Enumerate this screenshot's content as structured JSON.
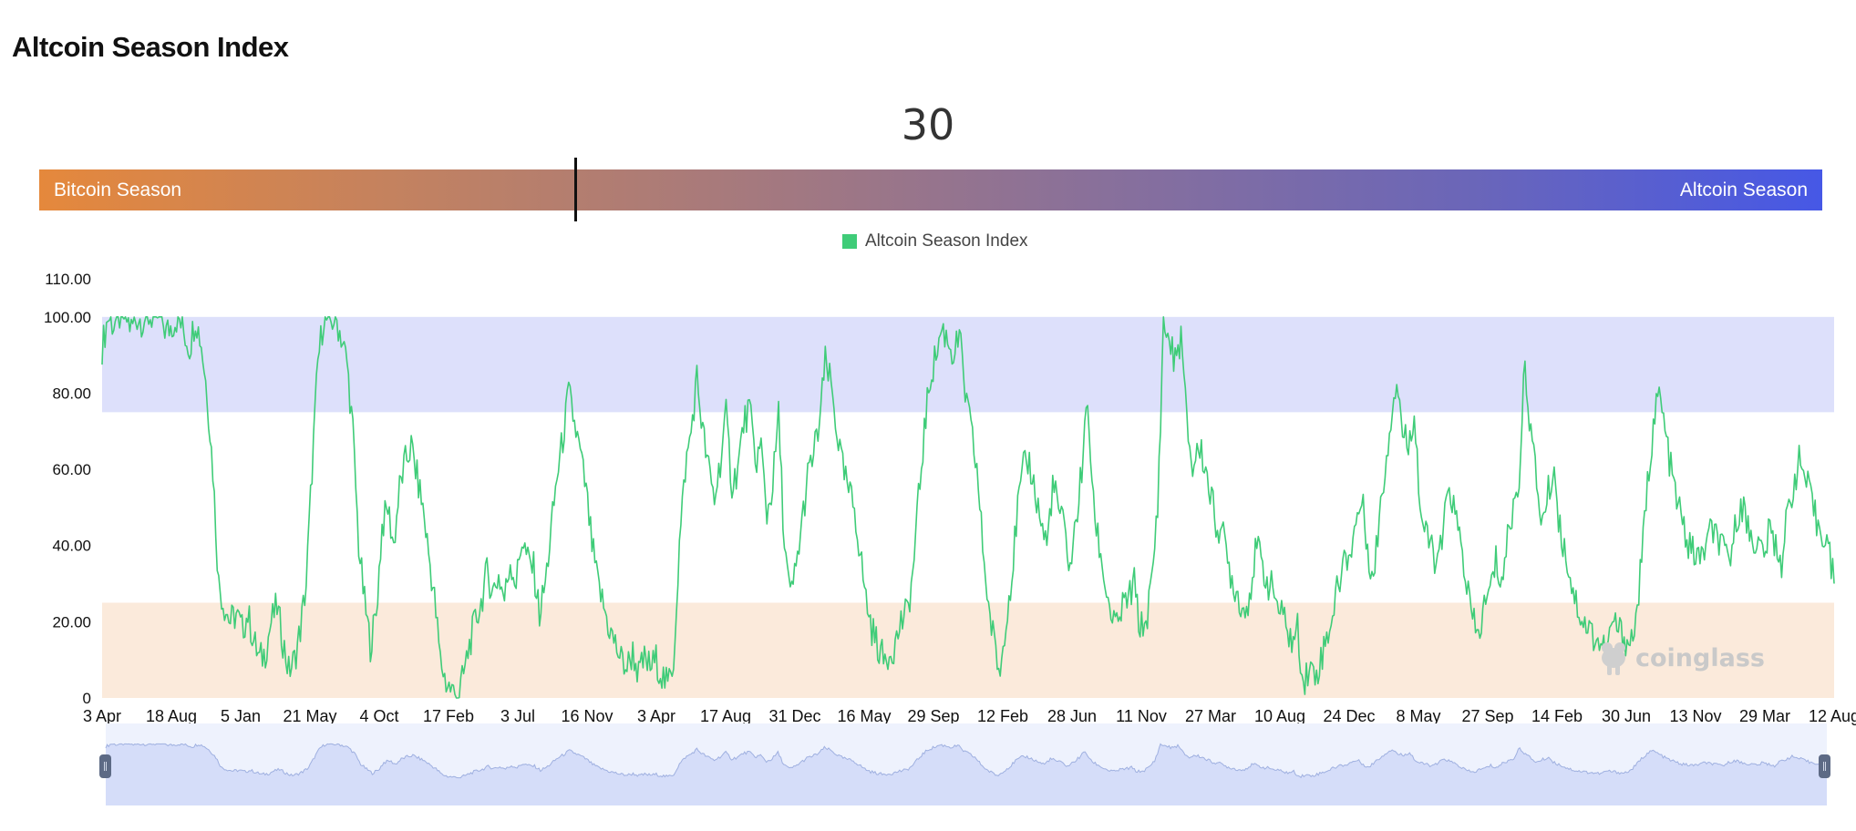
{
  "page": {
    "title": "Altcoin Season Index"
  },
  "gauge": {
    "value": "30",
    "left_label": "Bitcoin Season",
    "right_label": "Altcoin Season",
    "min": 0,
    "max": 100
  },
  "watermark": {
    "text": "coinglass",
    "icon": "coinglass-frog-logo-icon"
  },
  "colors": {
    "line": "#3fcc78",
    "altcoin_zone": "#dde0fb",
    "bitcoin_zone": "#fbeadb",
    "slider_bg": "#eef2fd",
    "slider_fill": "#d5ddf9",
    "slider_line": "#9fb0e0"
  },
  "chart_data": {
    "type": "line",
    "legend": {
      "label": "Altcoin Season Index",
      "placement": "top-center",
      "color": "#3fcc78"
    },
    "ylim": [
      0,
      110
    ],
    "y_ticks": [
      "0",
      "20.00",
      "40.00",
      "60.00",
      "80.00",
      "100.00",
      "110.00"
    ],
    "y_tick_values": [
      0,
      20,
      40,
      60,
      80,
      100,
      110
    ],
    "x_ticks": [
      "3 Apr",
      "18 Aug",
      "5 Jan",
      "21 May",
      "4 Oct",
      "17 Feb",
      "3 Jul",
      "16 Nov",
      "3 Apr",
      "17 Aug",
      "31 Dec",
      "16 May",
      "29 Sep",
      "12 Feb",
      "28 Jun",
      "11 Nov",
      "27 Mar",
      "10 Aug",
      "24 Dec",
      "8 May",
      "27 Sep",
      "14 Feb",
      "30 Jun",
      "13 Nov",
      "29 Mar",
      "12 Aug"
    ],
    "bands": [
      {
        "name": "Altcoin Season",
        "from": 75,
        "to": 100
      },
      {
        "name": "Bitcoin Season",
        "from": 0,
        "to": 25
      }
    ],
    "series": [
      {
        "values": [
          92,
          100,
          98,
          100,
          100,
          97,
          100,
          99,
          100,
          100,
          100,
          96,
          98,
          100,
          96,
          92,
          100,
          93,
          80,
          60,
          30,
          24,
          20,
          22,
          18,
          22,
          15,
          10,
          12,
          20,
          24,
          15,
          7,
          10,
          18,
          30,
          60,
          88,
          100,
          98,
          100,
          95,
          88,
          70,
          40,
          25,
          14,
          22,
          45,
          50,
          40,
          55,
          62,
          66,
          58,
          50,
          38,
          26,
          10,
          4,
          2,
          0,
          6,
          14,
          20,
          25,
          33,
          28,
          32,
          26,
          36,
          30,
          42,
          36,
          34,
          22,
          30,
          44,
          58,
          68,
          80,
          72,
          64,
          54,
          40,
          30,
          24,
          18,
          14,
          10,
          8,
          12,
          6,
          10,
          8,
          10,
          6,
          3,
          10,
          40,
          60,
          70,
          84,
          70,
          60,
          52,
          62,
          74,
          56,
          60,
          72,
          76,
          62,
          66,
          48,
          56,
          74,
          40,
          26,
          34,
          46,
          58,
          64,
          72,
          88,
          82,
          70,
          60,
          54,
          50,
          38,
          26,
          18,
          14,
          10,
          12,
          14,
          20,
          22,
          32,
          52,
          70,
          84,
          90,
          97,
          94,
          90,
          95,
          80,
          70,
          60,
          40,
          24,
          14,
          6,
          22,
          32,
          50,
          60,
          62,
          54,
          46,
          40,
          56,
          50,
          44,
          34,
          46,
          60,
          78,
          50,
          40,
          30,
          22,
          18,
          24,
          26,
          30,
          18,
          20,
          30,
          50,
          98,
          94,
          88,
          95,
          72,
          60,
          66,
          62,
          54,
          46,
          44,
          36,
          30,
          26,
          22,
          30,
          40,
          34,
          30,
          28,
          22,
          20,
          14,
          18,
          4,
          8,
          6,
          10,
          16,
          22,
          30,
          36,
          38,
          46,
          52,
          40,
          30,
          48,
          60,
          74,
          84,
          70,
          66,
          76,
          50,
          42,
          40,
          34,
          44,
          56,
          48,
          40,
          30,
          20,
          16,
          24,
          28,
          36,
          30,
          42,
          50,
          58,
          88,
          70,
          56,
          46,
          54,
          60,
          44,
          38,
          30,
          24,
          20,
          18,
          16,
          14,
          12,
          20,
          18,
          16,
          14,
          20,
          36,
          56,
          72,
          80,
          70,
          60,
          52,
          46,
          40,
          38,
          36,
          40,
          44,
          42,
          38,
          36,
          44,
          52,
          46,
          42,
          40,
          38,
          44,
          40,
          36,
          48,
          56,
          62,
          58,
          52,
          46,
          44,
          40,
          30
        ]
      }
    ],
    "slider": {
      "start": 0,
      "end": 100
    }
  }
}
